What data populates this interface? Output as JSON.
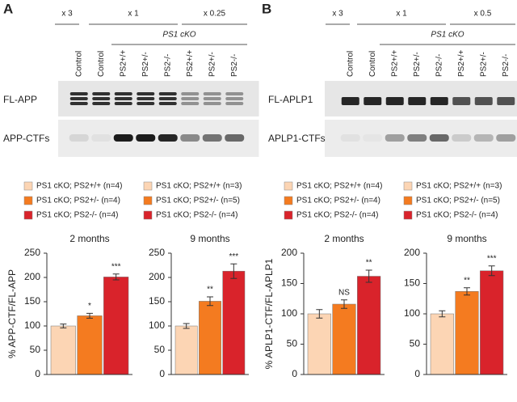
{
  "blots": [
    {
      "letter": "A",
      "dilutions": [
        "x 3",
        "x 1",
        "x 0.25"
      ],
      "group": "PS1 cKO",
      "lanes": [
        "Control",
        "Control",
        "PS2+/+",
        "PS2+/-",
        "PS2-/-",
        "PS2+/+",
        "PS2+/-",
        "PS2-/-"
      ],
      "rows": [
        "FL-APP",
        "APP-CTFs"
      ]
    },
    {
      "letter": "B",
      "dilutions": [
        "x 3",
        "x 1",
        "x 0.5"
      ],
      "group": "PS1 cKO",
      "lanes": [
        "Control",
        "Control",
        "PS2+/+",
        "PS2+/-",
        "PS2-/-",
        "PS2+/+",
        "PS2+/-",
        "PS2-/-"
      ],
      "rows": [
        "FL-APLP1",
        "APLP1-CTFs"
      ]
    }
  ],
  "chart_data": [
    {
      "type": "bar",
      "title": "2 months",
      "ylabel": "% APP-CTF/FL-APP",
      "ylim": [
        0,
        250
      ],
      "yticks": [
        0,
        50,
        100,
        150,
        200,
        250
      ],
      "series": [
        {
          "name": "PS1 cKO; PS2+/+ (n=4)",
          "color": "#fcd5b4",
          "values": [
            100
          ],
          "errors": [
            4
          ]
        },
        {
          "name": "PS1 cKO; PS2+/- (n=4)",
          "color": "#f47b20",
          "values": [
            121
          ],
          "errors": [
            5
          ],
          "annotation": "*"
        },
        {
          "name": "PS1 cKO; PS2-/- (n=4)",
          "color": "#d9232b",
          "values": [
            201
          ],
          "errors": [
            6
          ],
          "annotation": "***"
        }
      ]
    },
    {
      "type": "bar",
      "title": "9 months",
      "ylim": [
        0,
        250
      ],
      "yticks": [
        0,
        50,
        100,
        150,
        200,
        250
      ],
      "series": [
        {
          "name": "PS1 cKO; PS2+/+ (n=3)",
          "color": "#fcd5b4",
          "values": [
            100
          ],
          "errors": [
            5
          ]
        },
        {
          "name": "PS1 cKO; PS2+/- (n=5)",
          "color": "#f47b20",
          "values": [
            151
          ],
          "errors": [
            9
          ],
          "annotation": "**"
        },
        {
          "name": "PS1 cKO; PS2-/- (n=4)",
          "color": "#d9232b",
          "values": [
            213
          ],
          "errors": [
            15
          ],
          "annotation": "***"
        }
      ]
    },
    {
      "type": "bar",
      "title": "2 months",
      "ylabel": "% APLP1-CTF/FL-APLP1",
      "ylim": [
        0,
        200
      ],
      "yticks": [
        0,
        50,
        100,
        150,
        200
      ],
      "series": [
        {
          "name": "PS1 cKO; PS2+/+ (n=4)",
          "color": "#fcd5b4",
          "values": [
            100
          ],
          "errors": [
            7
          ]
        },
        {
          "name": "PS1 cKO; PS2+/- (n=4)",
          "color": "#f47b20",
          "values": [
            116
          ],
          "errors": [
            7
          ],
          "annotation": "NS"
        },
        {
          "name": "PS1 cKO; PS2-/- (n=4)",
          "color": "#d9232b",
          "values": [
            162
          ],
          "errors": [
            10
          ],
          "annotation": "**"
        }
      ]
    },
    {
      "type": "bar",
      "title": "9 months",
      "ylim": [
        0,
        200
      ],
      "yticks": [
        0,
        50,
        100,
        150,
        200
      ],
      "series": [
        {
          "name": "PS1 cKO; PS2+/+ (n=3)",
          "color": "#fcd5b4",
          "values": [
            100
          ],
          "errors": [
            5
          ]
        },
        {
          "name": "PS1 cKO; PS2+/- (n=5)",
          "color": "#f47b20",
          "values": [
            137
          ],
          "errors": [
            6
          ],
          "annotation": "**"
        },
        {
          "name": "PS1 cKO; PS2-/- (n=4)",
          "color": "#d9232b",
          "values": [
            171
          ],
          "errors": [
            8
          ],
          "annotation": "***"
        }
      ]
    }
  ]
}
